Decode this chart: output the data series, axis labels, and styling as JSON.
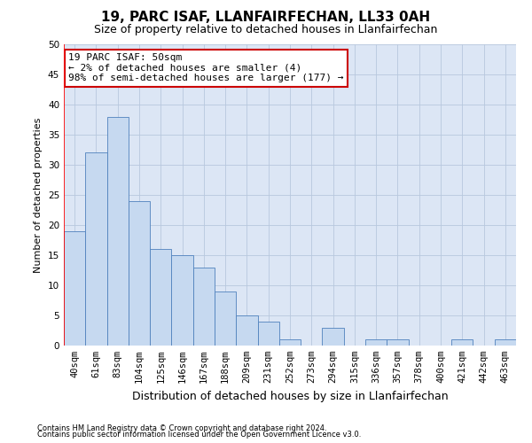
{
  "title": "19, PARC ISAF, LLANFAIRFECHAN, LL33 0AH",
  "subtitle": "Size of property relative to detached houses in Llanfairfechan",
  "xlabel": "Distribution of detached houses by size in Llanfairfechan",
  "ylabel": "Number of detached properties",
  "footnote1": "Contains HM Land Registry data © Crown copyright and database right 2024.",
  "footnote2": "Contains public sector information licensed under the Open Government Licence v3.0.",
  "categories": [
    "40sqm",
    "61sqm",
    "83sqm",
    "104sqm",
    "125sqm",
    "146sqm",
    "167sqm",
    "188sqm",
    "209sqm",
    "231sqm",
    "252sqm",
    "273sqm",
    "294sqm",
    "315sqm",
    "336sqm",
    "357sqm",
    "378sqm",
    "400sqm",
    "421sqm",
    "442sqm",
    "463sqm"
  ],
  "values": [
    19,
    32,
    38,
    24,
    16,
    15,
    13,
    9,
    5,
    4,
    1,
    0,
    3,
    0,
    1,
    1,
    0,
    0,
    1,
    0,
    1
  ],
  "bar_color": "#c6d9f0",
  "bar_edge_color": "#4f81bd",
  "annotation_text": "19 PARC ISAF: 50sqm\n← 2% of detached houses are smaller (4)\n98% of semi-detached houses are larger (177) →",
  "annotation_box_color": "#ffffff",
  "annotation_box_edge_color": "#cc0000",
  "ylim": [
    0,
    50
  ],
  "yticks": [
    0,
    5,
    10,
    15,
    20,
    25,
    30,
    35,
    40,
    45,
    50
  ],
  "bg_color": "#ffffff",
  "plot_bg_color": "#dce6f5",
  "grid_color": "#b8c8de",
  "title_fontsize": 11,
  "subtitle_fontsize": 9,
  "tick_fontsize": 7.5,
  "xlabel_fontsize": 9,
  "ylabel_fontsize": 8,
  "annotation_fontsize": 8
}
